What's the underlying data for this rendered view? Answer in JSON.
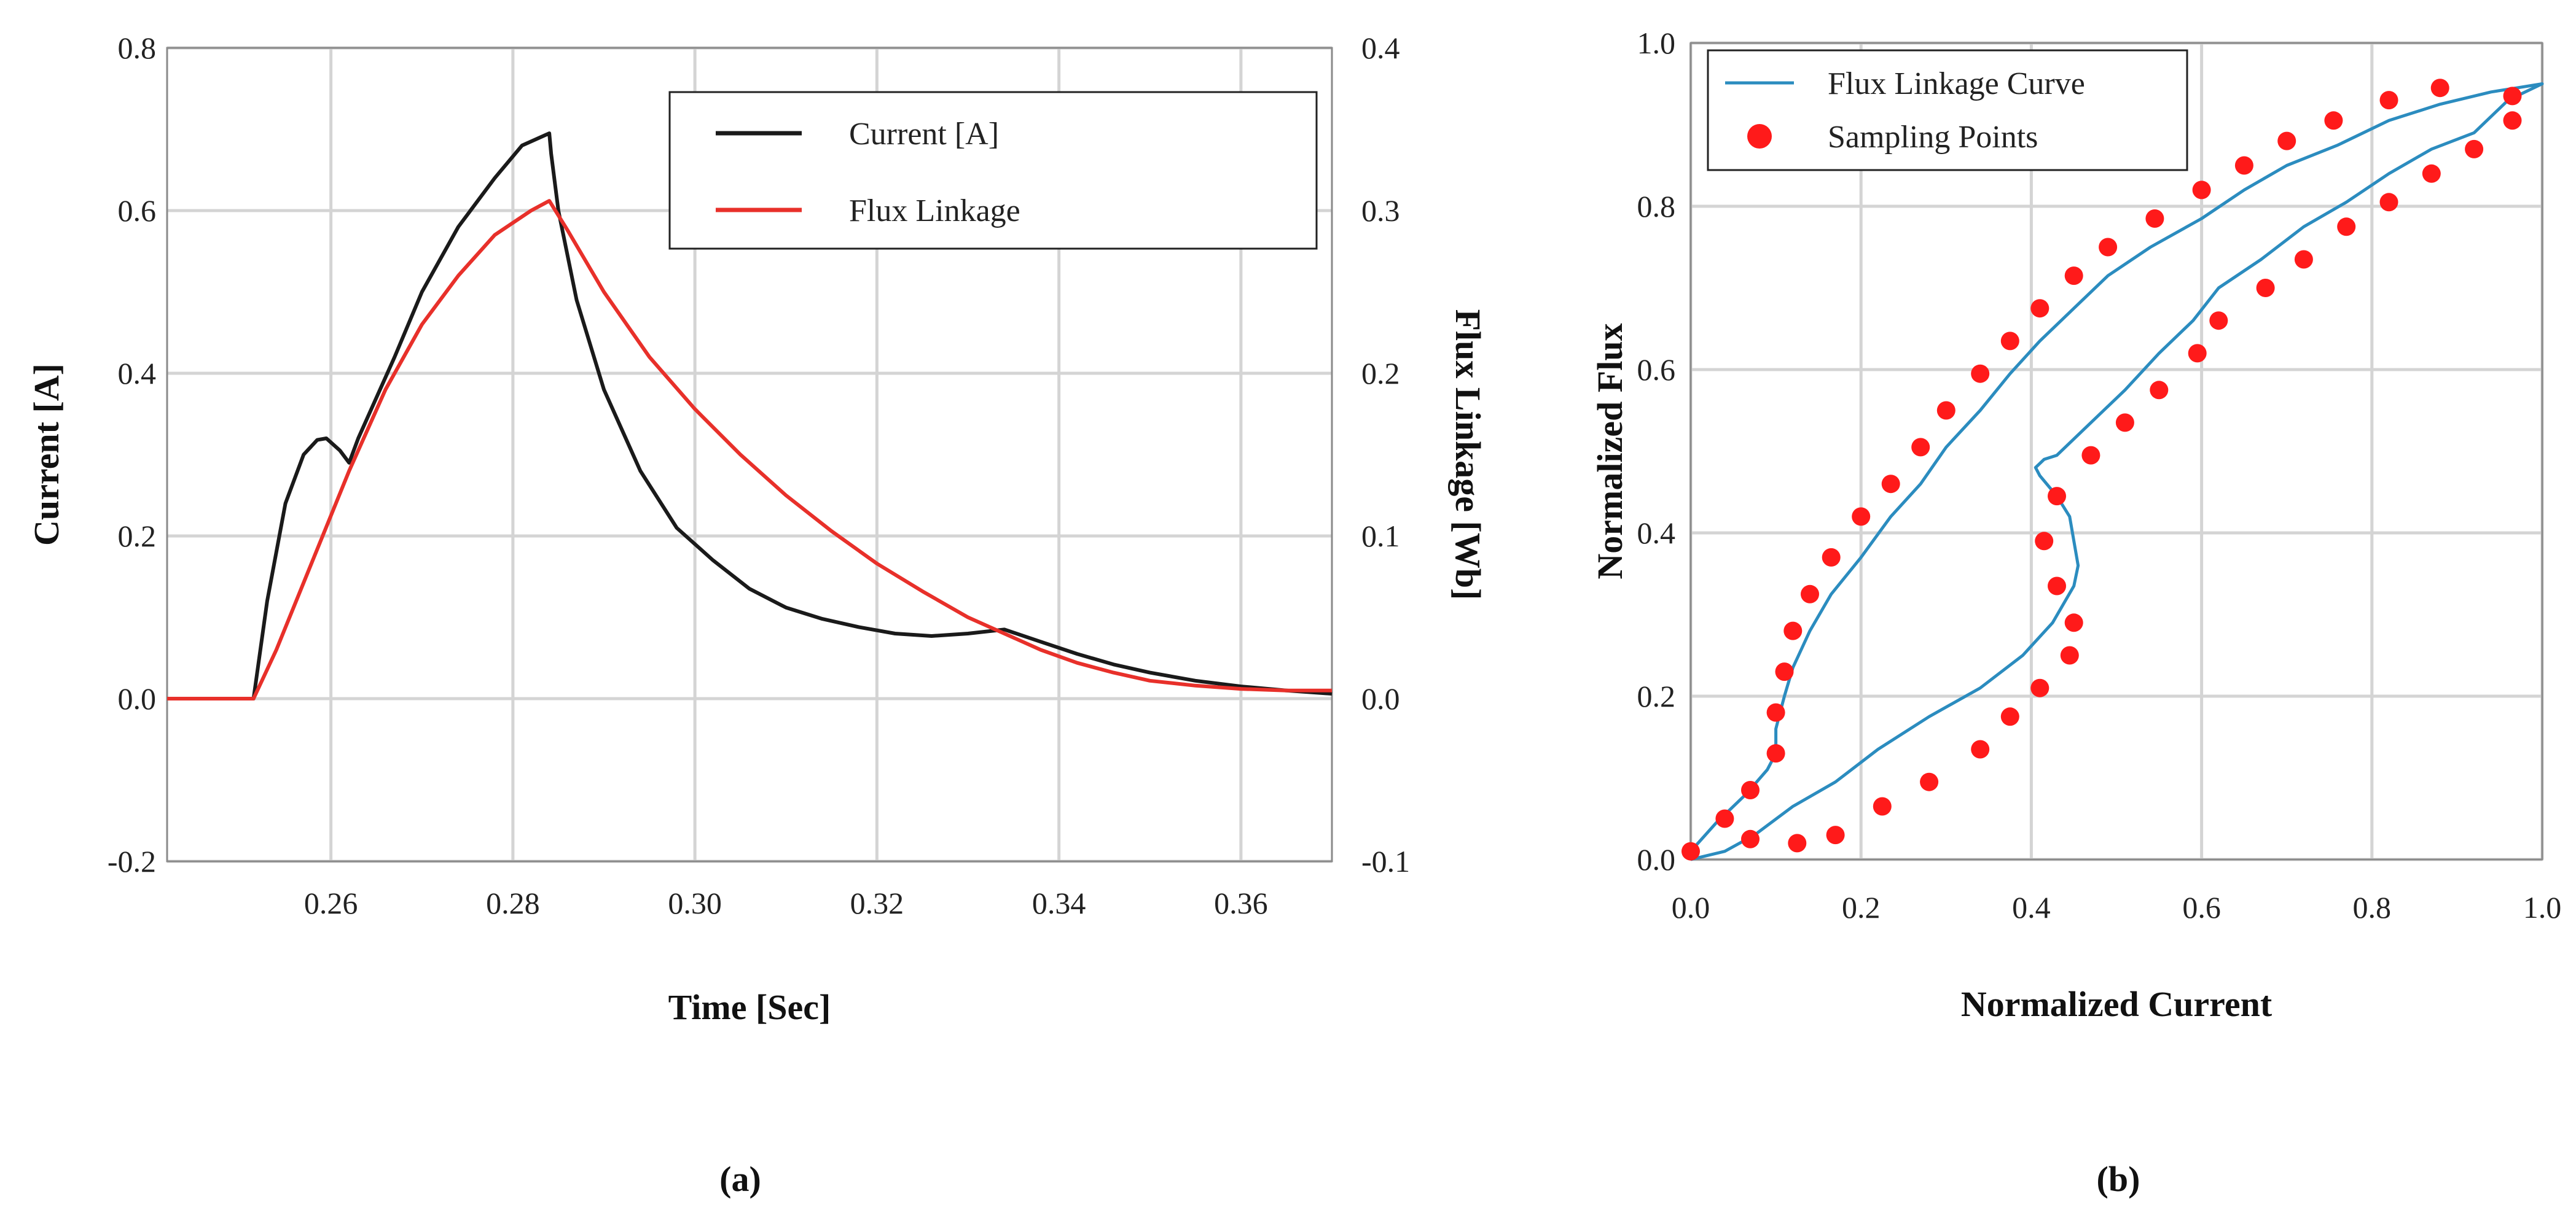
{
  "chart_data": [
    {
      "type": "line",
      "panel_label": "(a)",
      "xlabel": "Time [Sec]",
      "ylabel": "Current [A]",
      "y2label": "Flux Linkage [Wb]",
      "xlim": [
        0.242,
        0.37
      ],
      "ylim": [
        -0.2,
        0.8
      ],
      "y2lim": [
        -0.1,
        0.4
      ],
      "grid": true,
      "legend_position": "top-right",
      "x_ticks": [
        "0.26",
        "0.28",
        "0.30",
        "0.32",
        "0.34",
        "0.36"
      ],
      "y_ticks": [
        "-0.2",
        "0.0",
        "0.2",
        "0.4",
        "0.6",
        "0.8"
      ],
      "y2_ticks": [
        "-0.1",
        "0.0",
        "0.1",
        "0.2",
        "0.3",
        "0.4"
      ],
      "series": [
        {
          "name": "Current [A]",
          "axis": "left",
          "color": "#1a1a1a",
          "x": [
            0.242,
            0.2515,
            0.253,
            0.255,
            0.257,
            0.2585,
            0.2595,
            0.261,
            0.262,
            0.263,
            0.265,
            0.267,
            0.27,
            0.274,
            0.278,
            0.281,
            0.284,
            0.2842,
            0.285,
            0.287,
            0.29,
            0.294,
            0.298,
            0.302,
            0.306,
            0.31,
            0.314,
            0.318,
            0.322,
            0.326,
            0.33,
            0.334,
            0.338,
            0.342,
            0.346,
            0.35,
            0.355,
            0.36,
            0.365,
            0.37
          ],
          "values": [
            0.0,
            0.0,
            0.12,
            0.24,
            0.3,
            0.318,
            0.32,
            0.305,
            0.29,
            0.32,
            0.37,
            0.42,
            0.5,
            0.58,
            0.64,
            0.68,
            0.695,
            0.67,
            0.6,
            0.49,
            0.38,
            0.28,
            0.21,
            0.17,
            0.135,
            0.112,
            0.098,
            0.088,
            0.08,
            0.077,
            0.08,
            0.085,
            0.07,
            0.055,
            0.042,
            0.032,
            0.022,
            0.015,
            0.01,
            0.006
          ]
        },
        {
          "name": "Flux Linkage",
          "axis": "right",
          "color": "#e8302a",
          "x": [
            0.242,
            0.2515,
            0.254,
            0.258,
            0.262,
            0.266,
            0.27,
            0.274,
            0.278,
            0.282,
            0.284,
            0.286,
            0.29,
            0.295,
            0.3,
            0.305,
            0.31,
            0.315,
            0.32,
            0.325,
            0.33,
            0.334,
            0.338,
            0.342,
            0.346,
            0.35,
            0.355,
            0.36,
            0.365,
            0.37
          ],
          "values": [
            0.0,
            0.0,
            0.03,
            0.085,
            0.14,
            0.19,
            0.23,
            0.26,
            0.285,
            0.3,
            0.306,
            0.288,
            0.25,
            0.21,
            0.178,
            0.15,
            0.125,
            0.103,
            0.083,
            0.066,
            0.05,
            0.04,
            0.03,
            0.022,
            0.016,
            0.011,
            0.008,
            0.006,
            0.005,
            0.005
          ]
        }
      ]
    },
    {
      "type": "line",
      "panel_label": "(b)",
      "xlabel": "Normalized Current",
      "ylabel": "Normalized Flux",
      "xlim": [
        0.0,
        1.0
      ],
      "ylim": [
        0.0,
        1.0
      ],
      "grid": true,
      "legend_position": "top-left",
      "x_ticks": [
        "0.0",
        "0.2",
        "0.4",
        "0.6",
        "0.8",
        "1.0"
      ],
      "y_ticks": [
        "0.0",
        "0.2",
        "0.4",
        "0.6",
        "0.8",
        "1.0"
      ],
      "series": [
        {
          "name": "Flux Linkage Curve",
          "kind": "line",
          "color": "#2b8cbf",
          "x": [
            0.0,
            0.03,
            0.065,
            0.09,
            0.1,
            0.1,
            0.105,
            0.11,
            0.12,
            0.14,
            0.165,
            0.2,
            0.235,
            0.27,
            0.3,
            0.34,
            0.375,
            0.41,
            0.45,
            0.49,
            0.54,
            0.6,
            0.65,
            0.7,
            0.76,
            0.82,
            0.88,
            0.94,
            0.97,
            1.0,
            0.96,
            0.92,
            0.87,
            0.82,
            0.77,
            0.72,
            0.67,
            0.62,
            0.59,
            0.55,
            0.51,
            0.47,
            0.43,
            0.415,
            0.405,
            0.41,
            0.43,
            0.445,
            0.45,
            0.455,
            0.45,
            0.425,
            0.39,
            0.34,
            0.28,
            0.22,
            0.17,
            0.12,
            0.075,
            0.04,
            0.0
          ],
          "values": [
            0.01,
            0.045,
            0.08,
            0.11,
            0.13,
            0.16,
            0.18,
            0.2,
            0.235,
            0.28,
            0.325,
            0.37,
            0.42,
            0.46,
            0.505,
            0.55,
            0.595,
            0.635,
            0.675,
            0.715,
            0.75,
            0.785,
            0.82,
            0.85,
            0.875,
            0.905,
            0.925,
            0.94,
            0.945,
            0.95,
            0.93,
            0.89,
            0.87,
            0.84,
            0.805,
            0.775,
            0.735,
            0.7,
            0.66,
            0.62,
            0.575,
            0.535,
            0.495,
            0.49,
            0.48,
            0.47,
            0.445,
            0.42,
            0.39,
            0.36,
            0.335,
            0.29,
            0.25,
            0.21,
            0.175,
            0.135,
            0.095,
            0.065,
            0.03,
            0.01,
            0.0
          ]
        },
        {
          "name": "Sampling Points",
          "kind": "scatter",
          "color": "#ff1a1a",
          "x": [
            0.0,
            0.04,
            0.07,
            0.1,
            0.1,
            0.11,
            0.12,
            0.14,
            0.165,
            0.2,
            0.235,
            0.27,
            0.3,
            0.34,
            0.375,
            0.41,
            0.45,
            0.49,
            0.545,
            0.6,
            0.65,
            0.7,
            0.755,
            0.82,
            0.88,
            0.965,
            0.965,
            0.92,
            0.87,
            0.82,
            0.77,
            0.72,
            0.675,
            0.62,
            0.595,
            0.55,
            0.51,
            0.47,
            0.43,
            0.415,
            0.43,
            0.45,
            0.445,
            0.41,
            0.375,
            0.34,
            0.28,
            0.225,
            0.17,
            0.125,
            0.07
          ],
          "values": [
            0.01,
            0.05,
            0.085,
            0.13,
            0.18,
            0.23,
            0.28,
            0.325,
            0.37,
            0.42,
            0.46,
            0.505,
            0.55,
            0.595,
            0.635,
            0.675,
            0.715,
            0.75,
            0.785,
            0.82,
            0.85,
            0.88,
            0.905,
            0.93,
            0.945,
            0.935,
            0.905,
            0.87,
            0.84,
            0.805,
            0.775,
            0.735,
            0.7,
            0.66,
            0.62,
            0.575,
            0.535,
            0.495,
            0.445,
            0.39,
            0.335,
            0.29,
            0.25,
            0.21,
            0.175,
            0.135,
            0.095,
            0.065,
            0.03,
            0.02,
            0.025
          ]
        }
      ]
    }
  ]
}
